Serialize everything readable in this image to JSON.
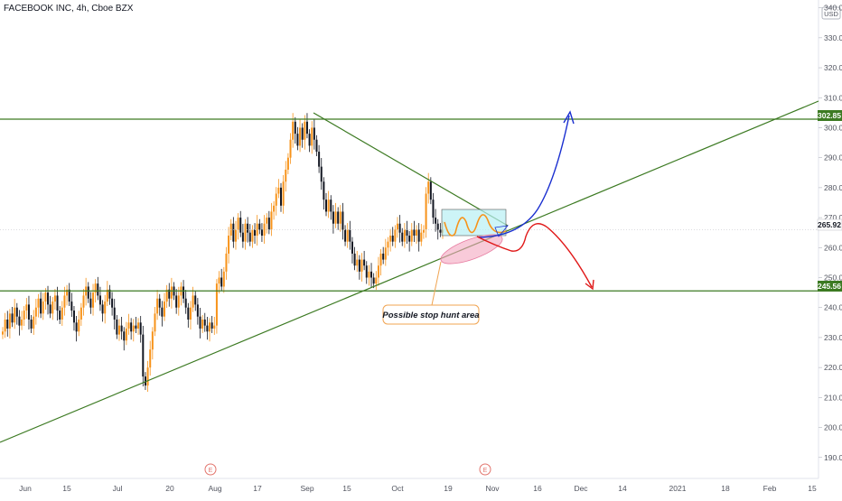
{
  "chart_data": {
    "type": "candlestick",
    "title": "FACEBOOK INC, 4h, Cboe BZX",
    "currency_badge": "USD",
    "y_range": [
      183,
      342
    ],
    "y_ticks": [
      190,
      200,
      210,
      220,
      230,
      240,
      250,
      260,
      270,
      280,
      290,
      300,
      310,
      320,
      330,
      340
    ],
    "y_tick_labels": [
      "190.00",
      "200.00",
      "210.00",
      "220.00",
      "230.00",
      "240.00",
      "250.00",
      "260.00",
      "270.00",
      "280.00",
      "290.00",
      "300.00",
      "310.00",
      "320.00",
      "330.00",
      "340.00"
    ],
    "x_ticks": [
      "Jun",
      "15",
      "Jul",
      "20",
      "Aug",
      "17",
      "Sep",
      "15",
      "Oct",
      "19",
      "Nov",
      "16",
      "Dec",
      "14",
      "2021",
      "18",
      "Feb",
      "15"
    ],
    "price_tags": {
      "resistance": "302.85",
      "current": "265.92",
      "support": "245.56"
    },
    "levels": {
      "resistance": 302.85,
      "current": 265.92,
      "support": 245.56
    },
    "annotation": "Possible stop hunt area",
    "event_markers": [
      "E",
      "E"
    ],
    "candles_close": [
      232,
      236,
      233,
      238,
      235,
      240,
      237,
      234,
      236,
      239,
      241,
      236,
      233,
      237,
      240,
      243,
      238,
      242,
      245,
      241,
      238,
      242,
      244,
      239,
      236,
      240,
      244,
      246,
      242,
      239,
      235,
      232,
      236,
      240,
      244,
      247,
      243,
      240,
      245,
      248,
      244,
      241,
      238,
      242,
      246,
      243,
      240,
      236,
      231,
      234,
      232,
      229,
      233,
      235,
      232,
      234,
      233,
      235,
      231,
      217,
      214,
      220,
      226,
      232,
      238,
      243,
      240,
      237,
      242,
      246,
      243,
      247,
      244,
      240,
      244,
      247,
      243,
      240,
      236,
      240,
      244,
      241,
      237,
      233,
      236,
      234,
      232,
      235,
      233,
      234,
      248,
      250,
      247,
      252,
      258,
      264,
      268,
      262,
      266,
      270,
      265,
      262,
      268,
      265,
      262,
      266,
      264,
      268,
      266,
      264,
      268,
      270,
      266,
      272,
      274,
      278,
      280,
      274,
      282,
      286,
      290,
      296,
      302,
      298,
      294,
      300,
      296,
      302,
      298,
      294,
      300,
      296,
      292,
      287,
      282,
      276,
      272,
      276,
      272,
      268,
      272,
      268,
      272,
      266,
      262,
      266,
      262,
      258,
      254,
      256,
      252,
      256,
      254,
      250,
      252,
      250,
      248,
      250,
      254,
      258,
      256,
      260,
      262,
      264,
      262,
      266,
      268,
      265,
      262,
      266,
      264,
      262,
      266,
      264,
      266,
      262,
      265,
      266,
      278,
      282,
      276,
      270,
      268,
      266,
      265,
      266
    ]
  }
}
